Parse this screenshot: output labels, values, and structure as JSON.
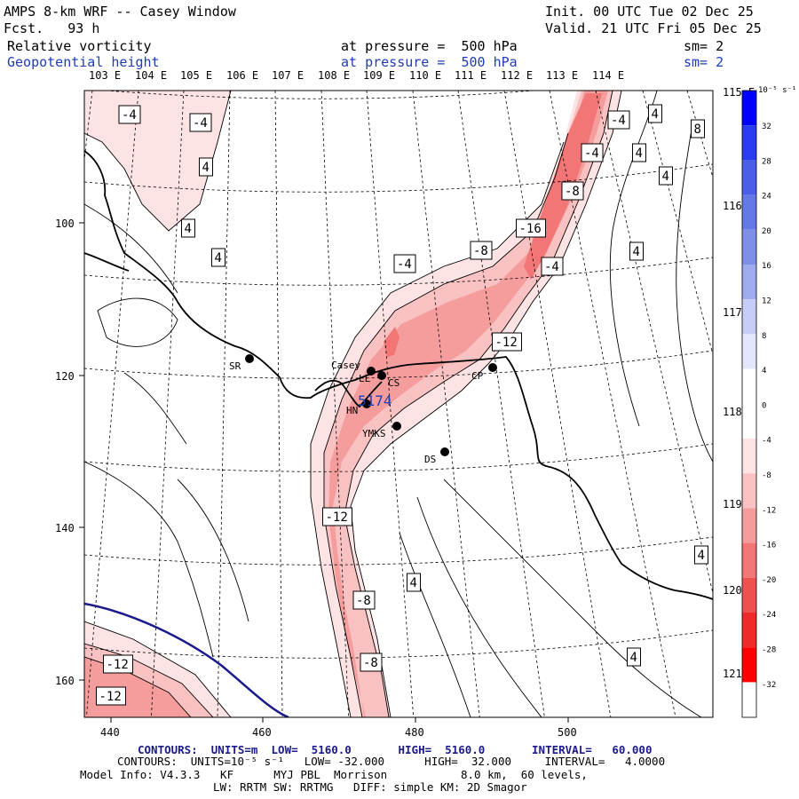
{
  "header": {
    "title": "AMPS 8-km WRF -- Casey Window",
    "fcst": "Fcst.   93 h",
    "init": "Init. 00 UTC Tue 02 Dec 25",
    "valid": "Valid. 21 UTC Fri 05 Dec 25",
    "field1_name": "Relative vorticity",
    "field1_level": "at pressure =  500 hPa",
    "field1_sm": "sm= 2",
    "field2_name": "Geopotential height",
    "field2_level": "at pressure =  500 hPa",
    "field2_sm": "sm= 2"
  },
  "top_lon_labels": [
    "103 E",
    "104 E",
    "105 E",
    "106 E",
    "107 E",
    "108 E",
    "109 E",
    "110 E",
    "111 E",
    "112 E",
    "113 E",
    "114 E"
  ],
  "right_lon_labels": [
    "115 E",
    "116 E",
    "117 E",
    "118 E",
    "119 E",
    "120 E",
    "121 E"
  ],
  "x_ticks": [
    "440",
    "460",
    "480",
    "500"
  ],
  "y_ticks": [
    "100",
    "120",
    "140",
    "160"
  ],
  "stations": [
    {
      "code": "SR"
    },
    {
      "code": "Casey"
    },
    {
      "code": "CS"
    },
    {
      "code": "LL"
    },
    {
      "code": "HN"
    },
    {
      "code": "YMKS"
    },
    {
      "code": "DS"
    },
    {
      "code": "CP"
    }
  ],
  "height_label": "5174",
  "contour_labels": [
    "-4",
    "-4",
    "4",
    "4",
    "4",
    "-4",
    "-8",
    "-16",
    "-8",
    "-4",
    "-4",
    "4",
    "4",
    "4",
    "4",
    "8",
    "-4",
    "-12",
    "-12",
    "-8",
    "-8",
    "4",
    "4",
    "4",
    "-12",
    "-12"
  ],
  "colorbar": {
    "unit_label": "10⁻⁵ s⁻¹",
    "ticks": [
      "32",
      "28",
      "24",
      "20",
      "16",
      "12",
      "8",
      "4",
      "0",
      "-4",
      "-8",
      "-12",
      "-16",
      "-20",
      "-24",
      "-28",
      "-32"
    ],
    "colors": [
      "#0000ff",
      "#2a3cf0",
      "#4a5ee8",
      "#6478e6",
      "#7f8fe8",
      "#9fabee",
      "#c6cdf6",
      "#e4e7fb",
      "#ffffff",
      "#ffffff",
      "#fde3e3",
      "#f9c2c2",
      "#f59d9d",
      "#f27676",
      "#ef5050",
      "#ef2a2a",
      "#ff0000"
    ]
  },
  "footer": {
    "contours_height": "CONTOURS:  UNITS=m  LOW=  5160.0       HIGH=  5160.0       INTERVAL=   60.000",
    "contours_vort": "CONTOURS:  UNITS=10⁻⁵ s⁻¹   LOW= -32.000      HIGH=  32.000     INTERVAL=   4.0000",
    "model_info": "Model Info: V4.3.3   KF      MYJ PBL  Morrison           8.0 km,  60 levels,",
    "model_info2": "LW: RRTM SW: RRTMG   DIFF: simple KM: 2D Smagor"
  },
  "colors": {
    "navy": "#1a1a8c",
    "coast": "#000000",
    "contour": "#000000"
  }
}
